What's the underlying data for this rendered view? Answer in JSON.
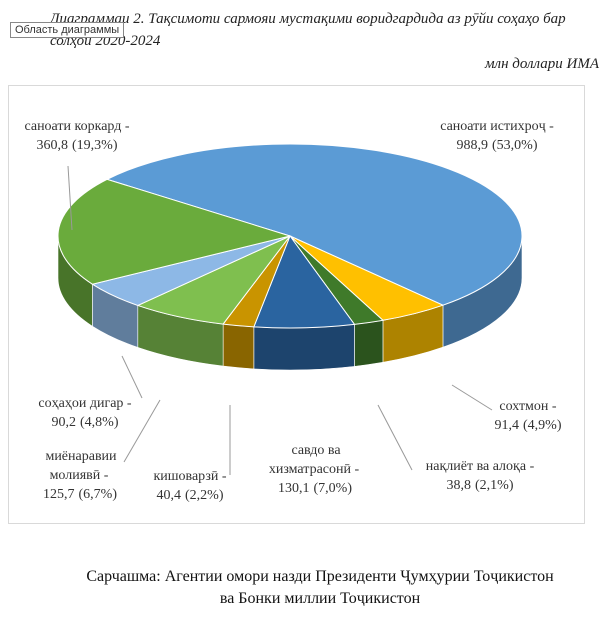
{
  "document": {
    "title": "Диаграммаи 2. Тақсимоти сармояи мустақими воридгардида аз рӯйи соҳаҳо бар солҳои 2020-2024",
    "tooltip": "Область диаграммы",
    "source": [
      "Сарчашма: Агентии омори назди Президенти Ҷумҳурии Тоҷикистон",
      "ва Бонки миллии Тоҷикистон"
    ]
  },
  "chart_data": {
    "type": "pie",
    "unit_label": "млн доллари ИМА",
    "categories": [
      "саноати истихроҷ -",
      "сохтмон -",
      "нақлиёт ва алоқа -",
      "савдо ва хизматрасонӣ -",
      "кишоварзӣ -",
      "миёнаравии молиявӣ -",
      "соҳаҳои дигар -",
      "саноати коркард -"
    ],
    "values": [
      988.9,
      91.4,
      38.8,
      130.1,
      40.4,
      125.7,
      90.2,
      360.8
    ],
    "value_labels": [
      "988,9",
      "91,4",
      "38,8",
      "130,1",
      "40,4",
      "125,7",
      "90,2",
      "360,8"
    ],
    "percents": [
      53.0,
      4.9,
      2.1,
      7.0,
      2.2,
      6.7,
      4.8,
      19.3
    ],
    "percent_labels": [
      "(53,0%)",
      "(4,9%)",
      "(2,1%)",
      "(7,0%)",
      "(2,2%)",
      "(6,7%)",
      "(4,8%)",
      "(19,3%)"
    ],
    "colors": [
      "#5b9bd5",
      "#ffc000",
      "#3f7a2a",
      "#2a64a0",
      "#c99400",
      "#7fbf4f",
      "#8db8e6",
      "#6aab3c"
    ]
  }
}
